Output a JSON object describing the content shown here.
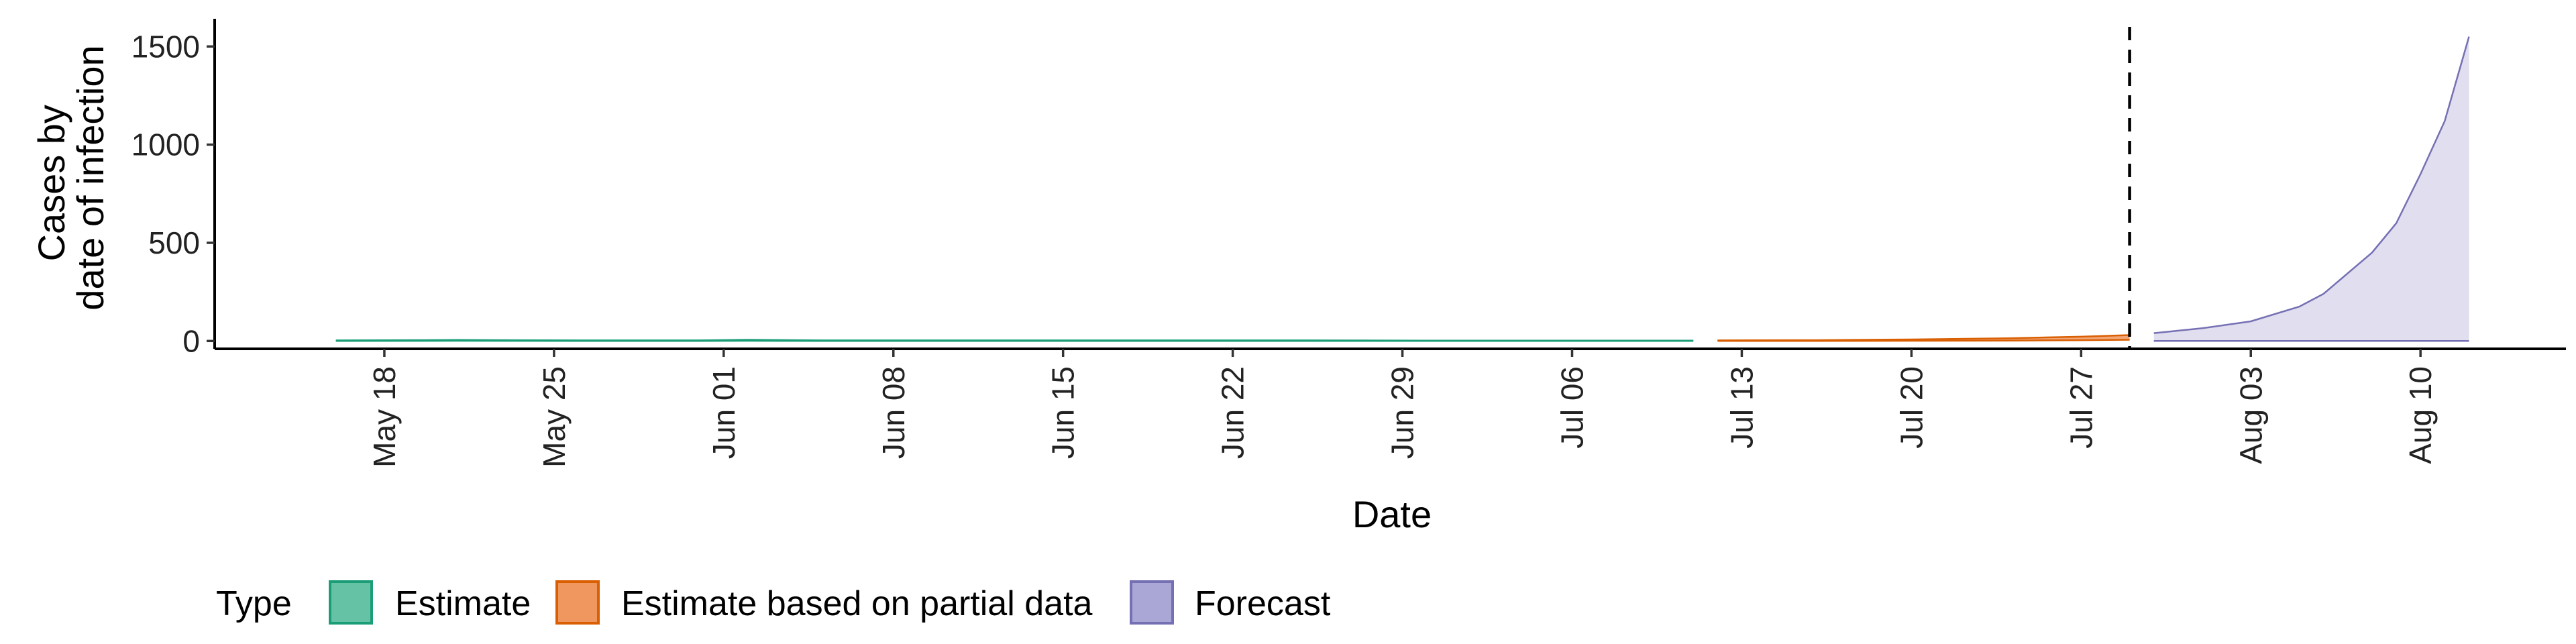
{
  "chart_data": {
    "type": "area",
    "xlabel": "Date",
    "ylabel_lines": [
      "Cases by",
      "date of infection"
    ],
    "ylim": [
      -40,
      1600
    ],
    "xlim": [
      "2020-05-11",
      "2020-08-16"
    ],
    "y_ticks": [
      0,
      500,
      1000,
      1500
    ],
    "y_tick_labels": [
      "0",
      "500",
      "1000",
      "1500"
    ],
    "x_ticks": [
      "2020-05-18",
      "2020-05-25",
      "2020-06-01",
      "2020-06-08",
      "2020-06-15",
      "2020-06-22",
      "2020-06-29",
      "2020-07-06",
      "2020-07-13",
      "2020-07-20",
      "2020-07-27",
      "2020-08-03",
      "2020-08-10"
    ],
    "x_tick_labels": [
      "May 18",
      "May 25",
      "Jun 01",
      "Jun 08",
      "Jun 15",
      "Jun 22",
      "Jun 29",
      "Jul 06",
      "Jul 13",
      "Jul 20",
      "Jul 27",
      "Aug 03",
      "Aug 10"
    ],
    "forecast_date": "2020-07-29",
    "grid": false,
    "legend": {
      "title": "Type",
      "position": "bottom",
      "entries": [
        {
          "label": "Estimate",
          "fill": "#66c2a5",
          "stroke": "#1b9e77"
        },
        {
          "label": "Estimate based on partial data",
          "fill": "#f0975f",
          "stroke": "#d95f02"
        },
        {
          "label": "Forecast",
          "fill": "#aaa6d6",
          "stroke": "#7570b3"
        }
      ]
    },
    "series": [
      {
        "name": "Estimate",
        "color": "#1b9e77",
        "fill": "#66c2a5",
        "x": [
          "2020-05-16",
          "2020-05-21",
          "2020-05-26",
          "2020-05-31",
          "2020-06-02",
          "2020-06-05",
          "2020-06-10",
          "2020-06-15",
          "2020-06-20",
          "2020-06-25",
          "2020-06-30",
          "2020-07-05",
          "2020-07-11"
        ],
        "lower": [
          0,
          1,
          0,
          0,
          1,
          0,
          0,
          0,
          0,
          0,
          0,
          0,
          0
        ],
        "upper": [
          3,
          5,
          3,
          3,
          6,
          3,
          3,
          3,
          3,
          3,
          2,
          2,
          2
        ]
      },
      {
        "name": "Estimate based on partial data",
        "color": "#d95f02",
        "fill": "#f0975f",
        "x": [
          "2020-07-12",
          "2020-07-16",
          "2020-07-20",
          "2020-07-24",
          "2020-07-27",
          "2020-07-29"
        ],
        "lower": [
          0,
          0,
          1,
          2,
          4,
          6
        ],
        "upper": [
          3,
          4,
          8,
          14,
          22,
          30
        ]
      },
      {
        "name": "Forecast",
        "color": "#7570b3",
        "fill": "#dad8ec",
        "x": [
          "2020-07-30",
          "2020-08-01",
          "2020-08-03",
          "2020-08-05",
          "2020-08-06",
          "2020-08-08",
          "2020-08-09",
          "2020-08-10",
          "2020-08-11",
          "2020-08-12"
        ],
        "lower": [
          0,
          0,
          0,
          0,
          0,
          0,
          0,
          0,
          0,
          0
        ],
        "upper": [
          40,
          65,
          100,
          175,
          240,
          450,
          600,
          850,
          1120,
          1550
        ]
      }
    ]
  }
}
